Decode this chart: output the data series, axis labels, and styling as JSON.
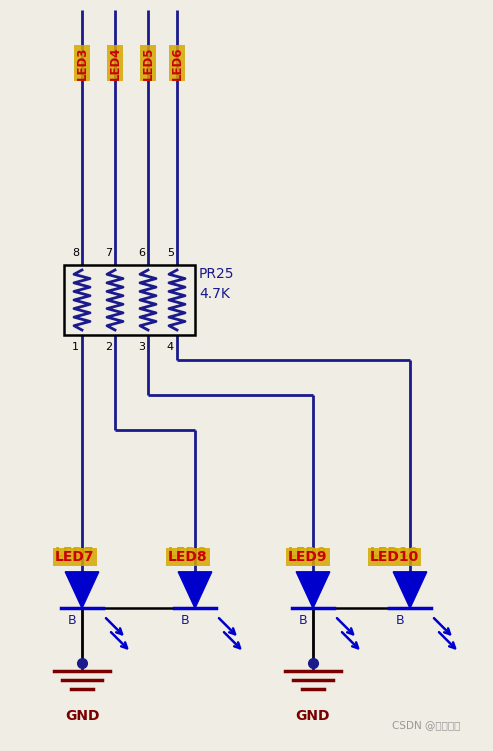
{
  "bg_color": "#f0ede4",
  "wire_color": "#1a1a8c",
  "box_color": "#000000",
  "led_color": "#0000cc",
  "led_label_color": "#d4a800",
  "gnd_color": "#7a0000",
  "pin_label_color": "#000000",
  "pr25_label_color": "#1a1a8c",
  "connector_labels_top": [
    "LED3",
    "LED4",
    "LED5",
    "LED6"
  ],
  "connector_labels_bottom": [
    "LED7",
    "LED8",
    "LED9",
    "LED10"
  ],
  "pin_top": [
    "8",
    "7",
    "6",
    "5"
  ],
  "pin_bottom": [
    "1",
    "2",
    "3",
    "4"
  ],
  "pr_label1": "PR25",
  "pr_label2": "4.7K",
  "gnd_label": "GND",
  "watermark": "CSDN @青藤硬件"
}
